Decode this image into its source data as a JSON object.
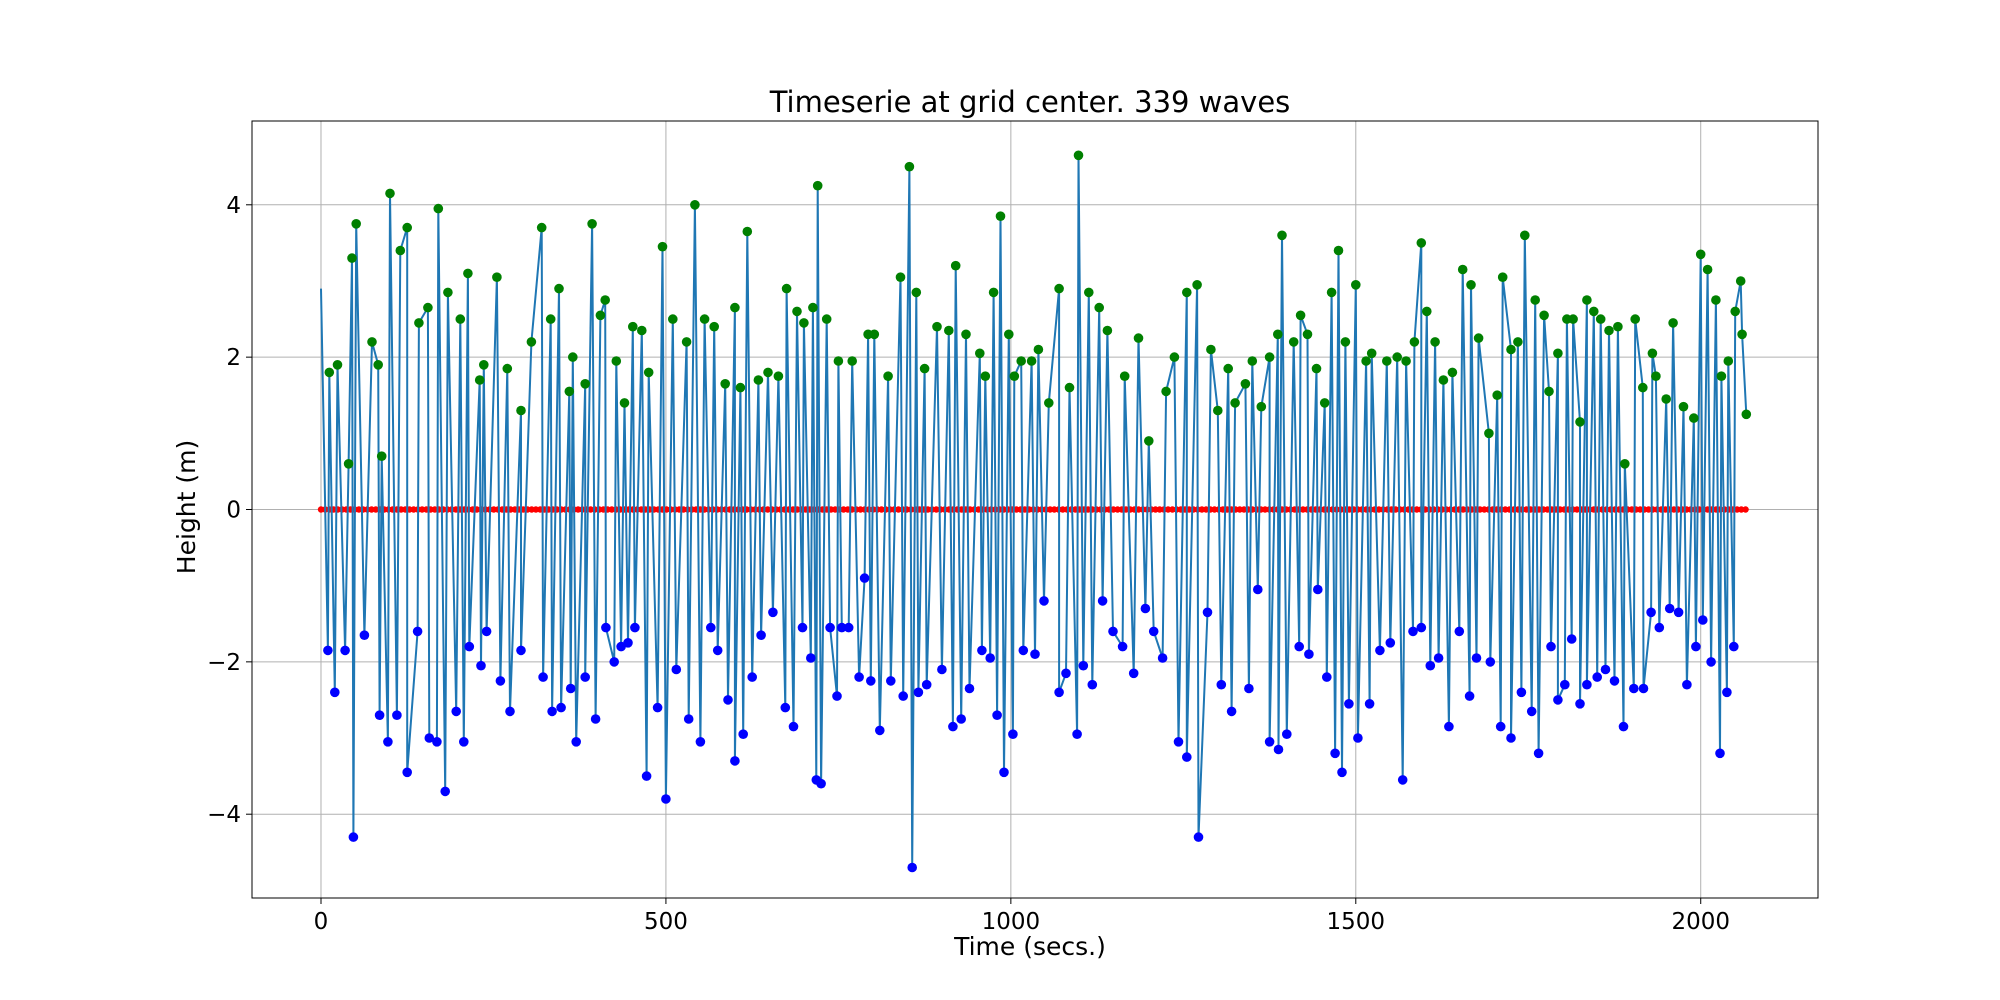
{
  "chart_data": {
    "type": "line",
    "title": "Timeserie at grid center. 339 waves",
    "xlabel": "Time (secs.)",
    "ylabel": "Height (m)",
    "xlim": [
      -100,
      2170
    ],
    "ylim": [
      -5.1,
      5.1
    ],
    "xticks": [
      0,
      500,
      1000,
      1500,
      2000
    ],
    "xtick_labels": [
      "0",
      "500",
      "1000",
      "1500",
      "2000"
    ],
    "yticks": [
      -4,
      -2,
      0,
      2,
      4
    ],
    "ytick_labels": [
      "−4",
      "−2",
      "0",
      "2",
      "4"
    ],
    "grid": true,
    "colors": {
      "line": "#1f77b4",
      "crest_markers": "#008000",
      "trough_markers": "#0000ff",
      "zero_crossing_markers": "#ff0000",
      "grid": "#b0b0b0"
    },
    "series": [
      {
        "role": "surface-elevation",
        "x_range": [
          0,
          2065
        ],
        "marker": "none"
      },
      {
        "role": "crests",
        "marker": "circle",
        "points": [
          [
            12,
            1.8
          ],
          [
            24,
            1.9
          ],
          [
            40,
            0.6
          ],
          [
            45,
            3.3
          ],
          [
            51,
            3.75
          ],
          [
            74,
            2.2
          ],
          [
            83,
            1.9
          ],
          [
            88,
            0.7
          ],
          [
            100,
            4.15
          ],
          [
            115,
            3.4
          ],
          [
            125,
            3.7
          ],
          [
            142,
            2.45
          ],
          [
            155,
            2.65
          ],
          [
            170,
            3.95
          ],
          [
            184,
            2.85
          ],
          [
            202,
            2.5
          ],
          [
            213,
            3.1
          ],
          [
            230,
            1.7
          ],
          [
            236,
            1.9
          ],
          [
            255,
            3.05
          ],
          [
            270,
            1.85
          ],
          [
            290,
            1.3
          ],
          [
            305,
            2.2
          ],
          [
            320,
            3.7
          ],
          [
            333,
            2.5
          ],
          [
            345,
            2.9
          ],
          [
            360,
            1.55
          ],
          [
            365,
            2.0
          ],
          [
            383,
            1.65
          ],
          [
            393,
            3.75
          ],
          [
            405,
            2.55
          ],
          [
            412,
            2.75
          ],
          [
            428,
            1.95
          ],
          [
            440,
            1.4
          ],
          [
            452,
            2.4
          ],
          [
            465,
            2.35
          ],
          [
            475,
            1.8
          ],
          [
            495,
            3.45
          ],
          [
            510,
            2.5
          ],
          [
            530,
            2.2
          ],
          [
            542,
            4.0
          ],
          [
            556,
            2.5
          ],
          [
            570,
            2.4
          ],
          [
            586,
            1.65
          ],
          [
            600,
            2.65
          ],
          [
            608,
            1.6
          ],
          [
            618,
            3.65
          ],
          [
            634,
            1.7
          ],
          [
            648,
            1.8
          ],
          [
            663,
            1.75
          ],
          [
            675,
            2.9
          ],
          [
            690,
            2.6
          ],
          [
            700,
            2.45
          ],
          [
            713,
            2.65
          ],
          [
            720,
            4.25
          ],
          [
            733,
            2.5
          ],
          [
            750,
            1.95
          ],
          [
            770,
            1.95
          ],
          [
            793,
            2.3
          ],
          [
            802,
            2.3
          ],
          [
            822,
            1.75
          ],
          [
            840,
            3.05
          ],
          [
            853,
            4.5
          ],
          [
            863,
            2.85
          ],
          [
            875,
            1.85
          ],
          [
            893,
            2.4
          ],
          [
            910,
            2.35
          ],
          [
            920,
            3.2
          ],
          [
            935,
            2.3
          ],
          [
            955,
            2.05
          ],
          [
            963,
            1.75
          ],
          [
            975,
            2.85
          ],
          [
            985,
            3.85
          ],
          [
            997,
            2.3
          ],
          [
            1005,
            1.75
          ],
          [
            1015,
            1.95
          ],
          [
            1030,
            1.95
          ],
          [
            1040,
            2.1
          ],
          [
            1055,
            1.4
          ],
          [
            1070,
            2.9
          ],
          [
            1085,
            1.6
          ],
          [
            1098,
            4.65
          ],
          [
            1113,
            2.85
          ],
          [
            1128,
            2.65
          ],
          [
            1140,
            2.35
          ],
          [
            1165,
            1.75
          ],
          [
            1185,
            2.25
          ],
          [
            1200,
            0.9
          ],
          [
            1225,
            1.55
          ],
          [
            1237,
            2.0
          ],
          [
            1255,
            2.85
          ],
          [
            1270,
            2.95
          ],
          [
            1290,
            2.1
          ],
          [
            1300,
            1.3
          ],
          [
            1315,
            1.85
          ],
          [
            1325,
            1.4
          ],
          [
            1340,
            1.65
          ],
          [
            1350,
            1.95
          ],
          [
            1363,
            1.35
          ],
          [
            1375,
            2.0
          ],
          [
            1387,
            2.3
          ],
          [
            1393,
            3.6
          ],
          [
            1410,
            2.2
          ],
          [
            1420,
            2.55
          ],
          [
            1430,
            2.3
          ],
          [
            1443,
            1.85
          ],
          [
            1455,
            1.4
          ],
          [
            1465,
            2.85
          ],
          [
            1475,
            3.4
          ],
          [
            1485,
            2.2
          ],
          [
            1500,
            2.95
          ],
          [
            1515,
            1.95
          ],
          [
            1523,
            2.05
          ],
          [
            1545,
            1.95
          ],
          [
            1560,
            2.0
          ],
          [
            1573,
            1.95
          ],
          [
            1585,
            2.2
          ],
          [
            1595,
            3.5
          ],
          [
            1603,
            2.6
          ],
          [
            1615,
            2.2
          ],
          [
            1627,
            1.7
          ],
          [
            1640,
            1.8
          ],
          [
            1655,
            3.15
          ],
          [
            1667,
            2.95
          ],
          [
            1678,
            2.25
          ],
          [
            1693,
            1.0
          ],
          [
            1705,
            1.5
          ],
          [
            1713,
            3.05
          ],
          [
            1725,
            2.1
          ],
          [
            1735,
            2.2
          ],
          [
            1745,
            3.6
          ],
          [
            1760,
            2.75
          ],
          [
            1773,
            2.55
          ],
          [
            1780,
            1.55
          ],
          [
            1793,
            2.05
          ],
          [
            1806,
            2.5
          ],
          [
            1815,
            2.5
          ],
          [
            1825,
            1.15
          ],
          [
            1835,
            2.75
          ],
          [
            1845,
            2.6
          ],
          [
            1855,
            2.5
          ],
          [
            1867,
            2.35
          ],
          [
            1880,
            2.4
          ],
          [
            1890,
            0.6
          ],
          [
            1905,
            2.5
          ],
          [
            1916,
            1.6
          ],
          [
            1930,
            2.05
          ],
          [
            1935,
            1.75
          ],
          [
            1950,
            1.45
          ],
          [
            1960,
            2.45
          ],
          [
            1975,
            1.35
          ],
          [
            1990,
            1.2
          ],
          [
            2000,
            3.35
          ],
          [
            2010,
            3.15
          ],
          [
            2022,
            2.75
          ],
          [
            2030,
            1.75
          ],
          [
            2040,
            1.95
          ],
          [
            2050,
            2.6
          ],
          [
            2058,
            3.0
          ],
          [
            2060,
            2.3
          ],
          [
            2066,
            1.25
          ]
        ]
      },
      {
        "role": "troughs",
        "marker": "circle",
        "points": [
          [
            10,
            -1.85
          ],
          [
            20,
            -2.4
          ],
          [
            35,
            -1.85
          ],
          [
            47,
            -4.3
          ],
          [
            63,
            -1.65
          ],
          [
            85,
            -2.7
          ],
          [
            97,
            -3.05
          ],
          [
            110,
            -2.7
          ],
          [
            125,
            -3.45
          ],
          [
            140,
            -1.6
          ],
          [
            157,
            -3.0
          ],
          [
            168,
            -3.05
          ],
          [
            180,
            -3.7
          ],
          [
            196,
            -2.65
          ],
          [
            207,
            -3.05
          ],
          [
            215,
            -1.8
          ],
          [
            232,
            -2.05
          ],
          [
            240,
            -1.6
          ],
          [
            260,
            -2.25
          ],
          [
            274,
            -2.65
          ],
          [
            290,
            -1.85
          ],
          [
            322,
            -2.2
          ],
          [
            335,
            -2.65
          ],
          [
            348,
            -2.6
          ],
          [
            362,
            -2.35
          ],
          [
            370,
            -3.05
          ],
          [
            383,
            -2.2
          ],
          [
            398,
            -2.75
          ],
          [
            413,
            -1.55
          ],
          [
            425,
            -2.0
          ],
          [
            435,
            -1.8
          ],
          [
            445,
            -1.75
          ],
          [
            455,
            -1.55
          ],
          [
            472,
            -3.5
          ],
          [
            488,
            -2.6
          ],
          [
            500,
            -3.8
          ],
          [
            515,
            -2.1
          ],
          [
            533,
            -2.75
          ],
          [
            550,
            -3.05
          ],
          [
            565,
            -1.55
          ],
          [
            575,
            -1.85
          ],
          [
            590,
            -2.5
          ],
          [
            600,
            -3.3
          ],
          [
            612,
            -2.95
          ],
          [
            625,
            -2.2
          ],
          [
            638,
            -1.65
          ],
          [
            655,
            -1.35
          ],
          [
            673,
            -2.6
          ],
          [
            685,
            -2.85
          ],
          [
            698,
            -1.55
          ],
          [
            710,
            -1.95
          ],
          [
            718,
            -3.55
          ],
          [
            725,
            -3.6
          ],
          [
            738,
            -1.55
          ],
          [
            748,
            -2.45
          ],
          [
            755,
            -1.55
          ],
          [
            765,
            -1.55
          ],
          [
            780,
            -2.2
          ],
          [
            788,
            -0.9
          ],
          [
            797,
            -2.25
          ],
          [
            810,
            -2.9
          ],
          [
            826,
            -2.25
          ],
          [
            844,
            -2.45
          ],
          [
            857,
            -4.7
          ],
          [
            866,
            -2.4
          ],
          [
            878,
            -2.3
          ],
          [
            900,
            -2.1
          ],
          [
            916,
            -2.85
          ],
          [
            928,
            -2.75
          ],
          [
            940,
            -2.35
          ],
          [
            958,
            -1.85
          ],
          [
            970,
            -1.95
          ],
          [
            980,
            -2.7
          ],
          [
            990,
            -3.45
          ],
          [
            1003,
            -2.95
          ],
          [
            1018,
            -1.85
          ],
          [
            1035,
            -1.9
          ],
          [
            1048,
            -1.2
          ],
          [
            1070,
            -2.4
          ],
          [
            1080,
            -2.15
          ],
          [
            1096,
            -2.95
          ],
          [
            1105,
            -2.05
          ],
          [
            1118,
            -2.3
          ],
          [
            1133,
            -1.2
          ],
          [
            1148,
            -1.6
          ],
          [
            1162,
            -1.8
          ],
          [
            1178,
            -2.15
          ],
          [
            1195,
            -1.3
          ],
          [
            1207,
            -1.6
          ],
          [
            1220,
            -1.95
          ],
          [
            1243,
            -3.05
          ],
          [
            1255,
            -3.25
          ],
          [
            1272,
            -4.3
          ],
          [
            1285,
            -1.35
          ],
          [
            1305,
            -2.3
          ],
          [
            1320,
            -2.65
          ],
          [
            1345,
            -2.35
          ],
          [
            1358,
            -1.05
          ],
          [
            1375,
            -3.05
          ],
          [
            1388,
            -3.15
          ],
          [
            1400,
            -2.95
          ],
          [
            1418,
            -1.8
          ],
          [
            1432,
            -1.9
          ],
          [
            1445,
            -1.05
          ],
          [
            1458,
            -2.2
          ],
          [
            1470,
            -3.2
          ],
          [
            1480,
            -3.45
          ],
          [
            1490,
            -2.55
          ],
          [
            1503,
            -3.0
          ],
          [
            1520,
            -2.55
          ],
          [
            1535,
            -1.85
          ],
          [
            1550,
            -1.75
          ],
          [
            1568,
            -3.55
          ],
          [
            1583,
            -1.6
          ],
          [
            1595,
            -1.55
          ],
          [
            1608,
            -2.05
          ],
          [
            1620,
            -1.95
          ],
          [
            1635,
            -2.85
          ],
          [
            1650,
            -1.6
          ],
          [
            1665,
            -2.45
          ],
          [
            1675,
            -1.95
          ],
          [
            1695,
            -2.0
          ],
          [
            1710,
            -2.85
          ],
          [
            1725,
            -3.0
          ],
          [
            1740,
            -2.4
          ],
          [
            1755,
            -2.65
          ],
          [
            1765,
            -3.2
          ],
          [
            1783,
            -1.8
          ],
          [
            1793,
            -2.5
          ],
          [
            1803,
            -2.3
          ],
          [
            1813,
            -1.7
          ],
          [
            1825,
            -2.55
          ],
          [
            1835,
            -2.3
          ],
          [
            1850,
            -2.2
          ],
          [
            1862,
            -2.1
          ],
          [
            1875,
            -2.25
          ],
          [
            1888,
            -2.85
          ],
          [
            1903,
            -2.35
          ],
          [
            1917,
            -2.35
          ],
          [
            1928,
            -1.35
          ],
          [
            1940,
            -1.55
          ],
          [
            1955,
            -1.3
          ],
          [
            1968,
            -1.35
          ],
          [
            1980,
            -2.3
          ],
          [
            1993,
            -1.8
          ],
          [
            2003,
            -1.45
          ],
          [
            2015,
            -2.0
          ],
          [
            2028,
            -3.2
          ],
          [
            2038,
            -2.4
          ],
          [
            2048,
            -1.8
          ]
        ]
      },
      {
        "role": "zero-crossings",
        "marker": "circle",
        "y": 0,
        "count": 339,
        "x_range": [
          0,
          2065
        ]
      }
    ]
  }
}
